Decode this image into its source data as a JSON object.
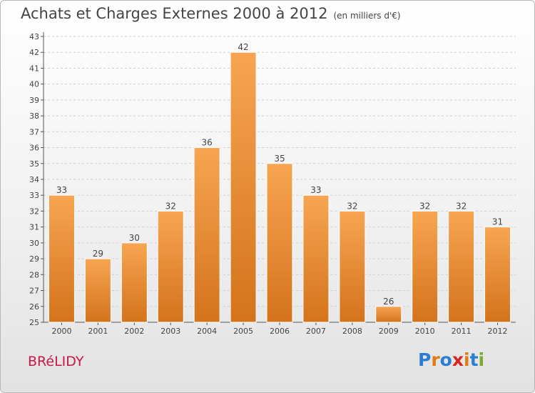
{
  "header": {
    "title": "Achats et Charges Externes 2000 à 2012",
    "unit": "(en milliers d'€)"
  },
  "footer": {
    "city": "BRéLIDY",
    "logo_letters": [
      "P",
      "r",
      "o",
      "x",
      "i",
      "t",
      "i"
    ],
    "logo_colors": [
      "#2a7fd4",
      "#e07b12",
      "#2a7fd4",
      "#d8261c",
      "#e07b12",
      "#2a7fd4",
      "#7aab2a"
    ]
  },
  "colors": {
    "bar_top": "#f7a552",
    "bar_bottom": "#d4731c",
    "grid": "#cfcfcf"
  },
  "chart_data": {
    "type": "bar",
    "title": "Achats et Charges Externes 2000 à 2012",
    "categories": [
      "2000",
      "2001",
      "2002",
      "2003",
      "2004",
      "2005",
      "2006",
      "2007",
      "2008",
      "2009",
      "2010",
      "2011",
      "2012"
    ],
    "values": [
      33,
      29,
      30,
      32,
      36,
      42,
      35,
      33,
      32,
      26,
      32,
      32,
      31
    ],
    "ylim": [
      25,
      43
    ],
    "yticks": [
      25,
      26,
      27,
      28,
      29,
      30,
      31,
      32,
      33,
      34,
      35,
      36,
      37,
      38,
      39,
      40,
      41,
      42,
      43
    ],
    "grid": true
  }
}
